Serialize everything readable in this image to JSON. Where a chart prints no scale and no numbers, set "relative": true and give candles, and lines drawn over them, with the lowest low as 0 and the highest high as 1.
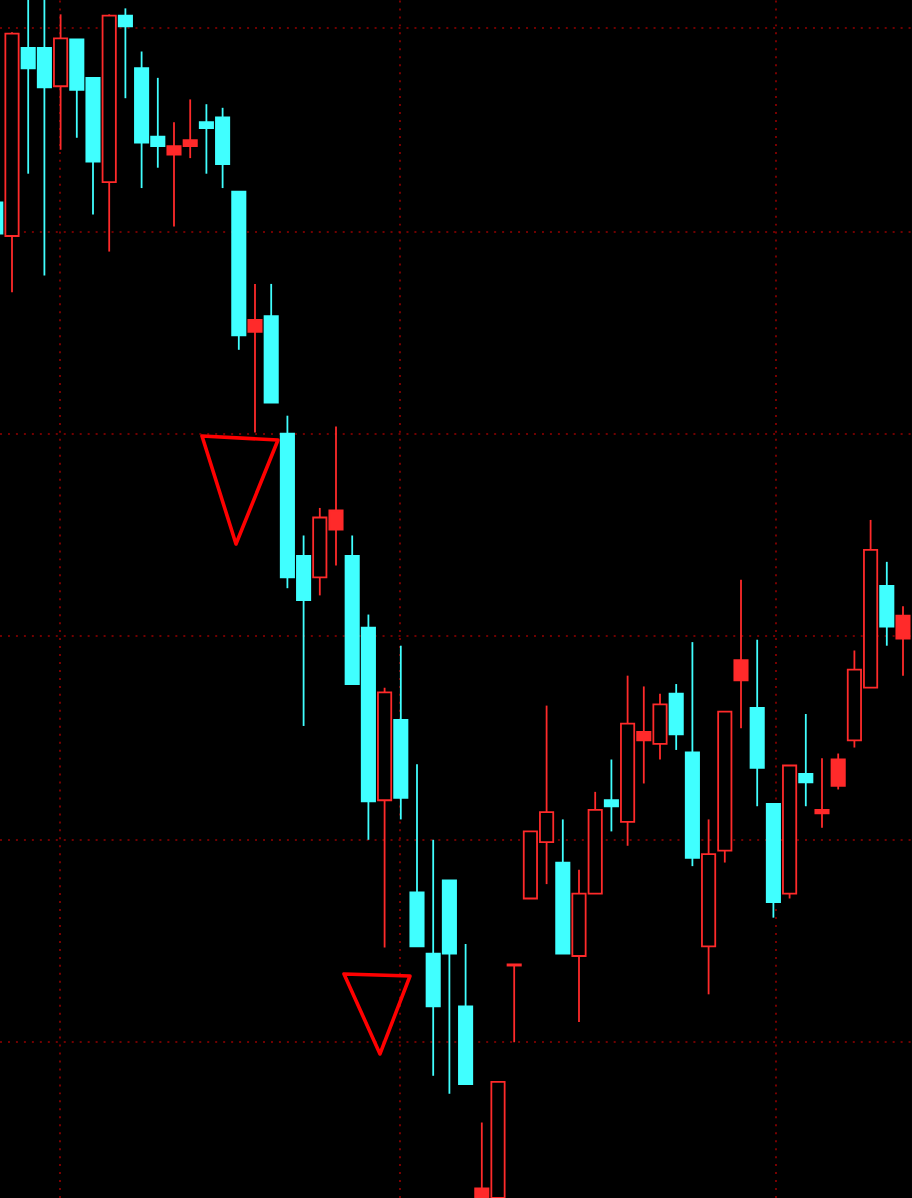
{
  "chart_data": {
    "type": "candlestick",
    "relative": true,
    "grid": true,
    "categories": [
      null,
      null,
      null,
      null,
      null,
      null,
      null,
      null,
      null,
      null,
      null,
      null,
      null,
      null,
      null,
      null,
      null,
      null,
      null,
      null,
      null,
      null,
      null,
      null,
      null,
      null,
      null,
      null,
      null,
      null,
      null,
      null,
      null,
      null,
      null,
      null,
      null,
      null,
      null,
      null,
      null,
      null,
      null,
      null,
      null,
      null,
      null,
      null,
      null,
      null,
      null,
      null,
      null,
      null,
      null,
      null,
      null
    ],
    "ohlc": [
      [
        0.831,
        0.831,
        0.805,
        0.805
      ],
      [
        0.803,
        0.973,
        0.756,
        0.972
      ],
      [
        0.96,
        1.0,
        0.855,
        0.943
      ],
      [
        0.96,
        1.0,
        0.77,
        0.927
      ],
      [
        0.928,
        0.988,
        0.875,
        0.968
      ],
      [
        0.967,
        0.967,
        0.885,
        0.925
      ],
      [
        0.935,
        0.935,
        0.821,
        0.865
      ],
      [
        0.848,
        0.988,
        0.79,
        0.987
      ],
      [
        0.987,
        0.993,
        0.918,
        0.978
      ],
      [
        0.943,
        0.957,
        0.843,
        0.881
      ],
      [
        0.886,
        0.935,
        0.86,
        0.878
      ],
      [
        0.871,
        0.898,
        0.811,
        0.878
      ],
      [
        0.878,
        0.917,
        0.868,
        0.883
      ],
      [
        0.898,
        0.913,
        0.855,
        0.893
      ],
      [
        0.902,
        0.91,
        0.843,
        0.863
      ],
      [
        0.84,
        0.84,
        0.708,
        0.72
      ],
      [
        0.723,
        0.763,
        0.639,
        0.733
      ],
      [
        0.736,
        0.763,
        0.664,
        0.664
      ],
      [
        0.638,
        0.653,
        0.509,
        0.518
      ],
      [
        0.536,
        0.553,
        0.394,
        0.499
      ],
      [
        0.518,
        0.576,
        0.503,
        0.568
      ],
      [
        0.558,
        0.644,
        0.528,
        0.574
      ],
      [
        0.536,
        0.553,
        0.429,
        0.429
      ],
      [
        0.476,
        0.487,
        0.299,
        0.331
      ],
      [
        0.332,
        0.426,
        0.209,
        0.422
      ],
      [
        0.399,
        0.461,
        0.316,
        0.334
      ],
      [
        0.255,
        0.362,
        0.21,
        0.21
      ],
      [
        0.204,
        0.299,
        0.102,
        0.16
      ],
      [
        0.265,
        0.265,
        0.087,
        0.204
      ],
      [
        0.16,
        0.212,
        0.095,
        0.095
      ],
      [
        0.0,
        0.063,
        0.0,
        0.008
      ],
      [
        0.0,
        0.097,
        0.0,
        0.097
      ],
      [
        0.194,
        0.195,
        0.13,
        0.195
      ],
      [
        0.25,
        0.306,
        0.25,
        0.306
      ],
      [
        0.297,
        0.411,
        0.262,
        0.322
      ],
      [
        0.28,
        0.316,
        0.204,
        0.204
      ],
      [
        0.202,
        0.274,
        0.147,
        0.254
      ],
      [
        0.254,
        0.339,
        0.254,
        0.324
      ],
      [
        0.332,
        0.366,
        0.306,
        0.327
      ],
      [
        0.314,
        0.436,
        0.294,
        0.396
      ],
      [
        0.382,
        0.427,
        0.346,
        0.389
      ],
      [
        0.379,
        0.421,
        0.366,
        0.412
      ],
      [
        0.421,
        0.429,
        0.374,
        0.387
      ],
      [
        0.372,
        0.464,
        0.277,
        0.284
      ],
      [
        0.21,
        0.316,
        0.17,
        0.287
      ],
      [
        0.29,
        0.406,
        0.28,
        0.406
      ],
      [
        0.432,
        0.516,
        0.392,
        0.449
      ],
      [
        0.409,
        0.466,
        0.327,
        0.359
      ],
      [
        0.329,
        0.329,
        0.234,
        0.247
      ],
      [
        0.254,
        0.361,
        0.25,
        0.361
      ],
      [
        0.354,
        0.404,
        0.327,
        0.347
      ],
      [
        0.321,
        0.367,
        0.309,
        0.324
      ],
      [
        0.344,
        0.371,
        0.341,
        0.366
      ],
      [
        0.382,
        0.457,
        0.376,
        0.441
      ],
      [
        0.426,
        0.566,
        0.426,
        0.541
      ],
      [
        0.511,
        0.531,
        0.461,
        0.477
      ],
      [
        0.467,
        0.494,
        0.436,
        0.486
      ]
    ],
    "colors": [
      "#40ffff",
      "#ff2a2a",
      "#40ffff",
      "#40ffff",
      "#ff2a2a",
      "#40ffff",
      "#40ffff",
      "#ff2a2a",
      "#40ffff",
      "#40ffff",
      "#40ffff",
      "#ff2a2a",
      "#ff2a2a",
      "#40ffff",
      "#40ffff",
      "#40ffff",
      "#ff2a2a",
      "#40ffff",
      "#40ffff",
      "#40ffff",
      "#ff2a2a",
      "#ff2a2a",
      "#40ffff",
      "#40ffff",
      "#ff2a2a",
      "#40ffff",
      "#40ffff",
      "#40ffff",
      "#40ffff",
      "#40ffff",
      "#ff2a2a",
      "#ff2a2a",
      "#ff2a2a",
      "#ff2a2a",
      "#ff2a2a",
      "#40ffff",
      "#ff2a2a",
      "#ff2a2a",
      "#40ffff",
      "#ff2a2a",
      "#ff2a2a",
      "#ff2a2a",
      "#40ffff",
      "#40ffff",
      "#ff2a2a",
      "#ff2a2a",
      "#ff2a2a",
      "#40ffff",
      "#40ffff",
      "#ff2a2a",
      "#40ffff",
      "#ff2a2a",
      "#ff2a2a",
      "#ff2a2a",
      "#ff2a2a",
      "#40ffff",
      "#ff2a2a"
    ]
  }
}
